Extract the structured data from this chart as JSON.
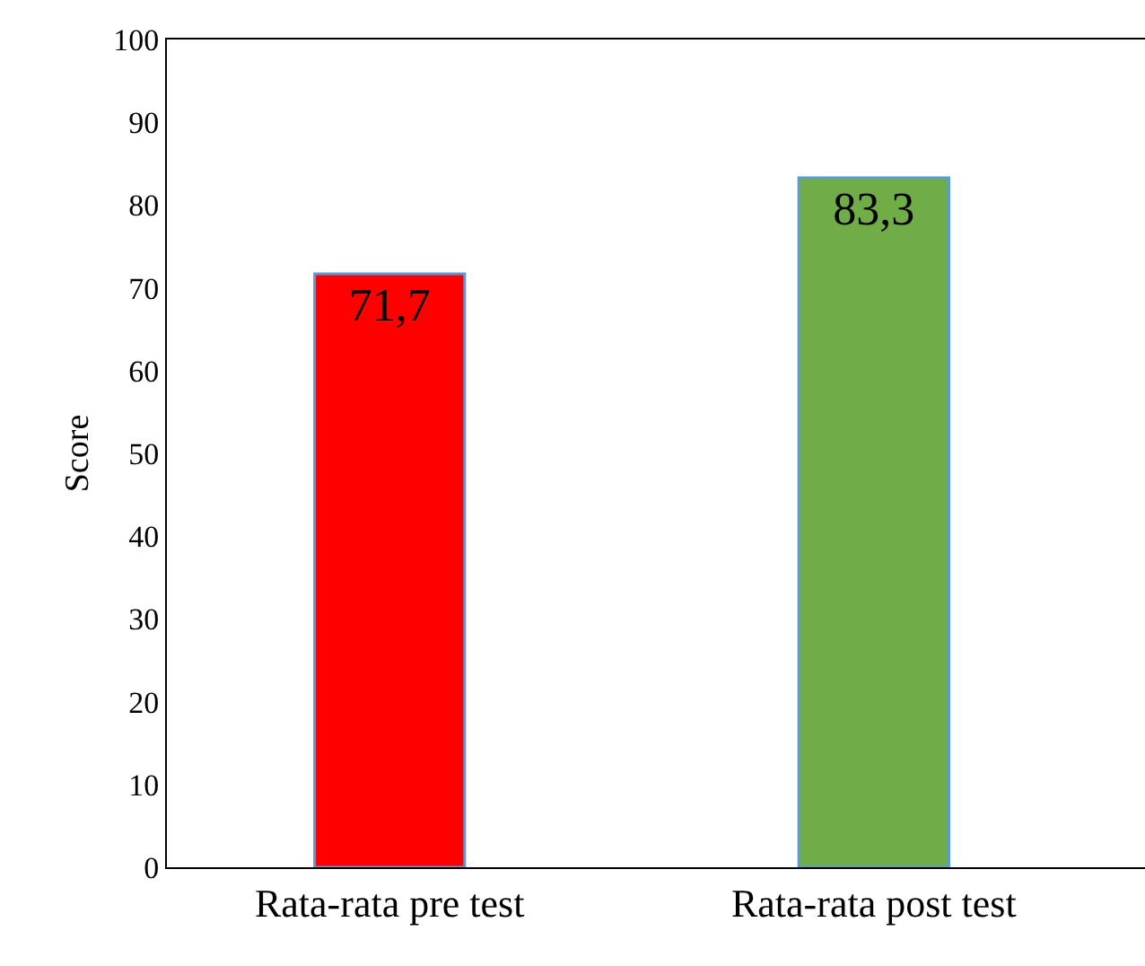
{
  "chart_data": {
    "type": "bar",
    "ylabel": "Score",
    "categories": [
      "Rata-rata pre test",
      "Rata-rata post test"
    ],
    "values": [
      71.7,
      83.3
    ],
    "value_labels": [
      "71,7",
      "83,3"
    ],
    "colors": [
      "#ff0000",
      "#70ad47"
    ],
    "ylim": [
      0,
      100
    ],
    "yticks": [
      0,
      10,
      20,
      30,
      40,
      50,
      60,
      70,
      80,
      90,
      100
    ]
  }
}
